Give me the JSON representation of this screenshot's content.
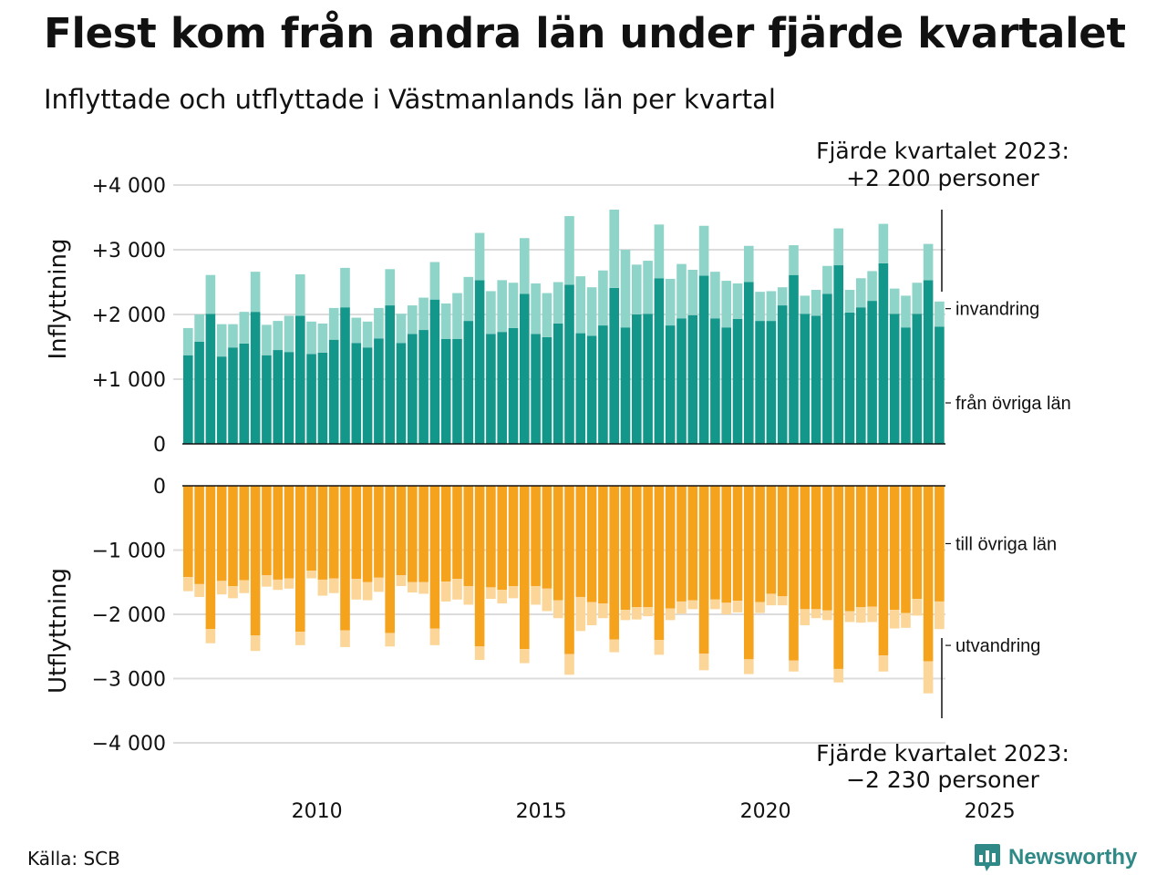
{
  "title": "Flest kom från andra län under fjärde kvartalet",
  "subtitle": "Inflyttade och utflyttade i Västmanlands län per kvartal",
  "source": "Källa: SCB",
  "brand": "Newsworthy",
  "colors": {
    "in_domestic": "#13978a",
    "in_immigration": "#8fd4c9",
    "out_domestic": "#f5a21d",
    "out_emigration": "#fbd698",
    "brand": "#2f8a87",
    "grid": "#dcdcdc"
  },
  "chart_data": {
    "type": "bar",
    "stacked": true,
    "x_start": "2007 Q1",
    "x_end": "2023 Q4",
    "x_ticks": [
      {
        "label": "2010",
        "year": 2010
      },
      {
        "label": "2015",
        "year": 2015
      },
      {
        "label": "2020",
        "year": 2020
      },
      {
        "label": "2025",
        "year": 2025
      }
    ],
    "panels": {
      "top": {
        "ylabel": "Inflyttning",
        "ylim": [
          0,
          4000
        ],
        "yticks": [
          {
            "v": 0,
            "label": "0"
          },
          {
            "v": 1000,
            "label": "+1 000"
          },
          {
            "v": 2000,
            "label": "+2 000"
          },
          {
            "v": 3000,
            "label": "+3 000"
          },
          {
            "v": 4000,
            "label": "+4 000"
          }
        ]
      },
      "bottom": {
        "ylabel": "Utflyttning",
        "ylim": [
          -4000,
          0
        ],
        "yticks": [
          {
            "v": 0,
            "label": "0"
          },
          {
            "v": -1000,
            "label": "−1 000"
          },
          {
            "v": -2000,
            "label": "−2 000"
          },
          {
            "v": -3000,
            "label": "−3 000"
          },
          {
            "v": -4000,
            "label": "−4 000"
          }
        ]
      }
    },
    "series": [
      {
        "name": "från övriga län",
        "panel": "top",
        "values": [
          1370,
          1580,
          2010,
          1350,
          1490,
          1550,
          2040,
          1370,
          1450,
          1420,
          1980,
          1390,
          1410,
          1610,
          2110,
          1560,
          1490,
          1630,
          2140,
          1560,
          1700,
          1760,
          2230,
          1620,
          1620,
          1900,
          2530,
          1700,
          1730,
          1790,
          2320,
          1700,
          1650,
          1860,
          2460,
          1710,
          1670,
          1830,
          2410,
          1800,
          2000,
          2010,
          2560,
          1830,
          1940,
          1990,
          2600,
          1940,
          1800,
          1930,
          2500,
          1900,
          1900,
          2140,
          2610,
          2010,
          1980,
          2320,
          2760,
          2030,
          2110,
          2210,
          2790,
          2010,
          1800,
          2010,
          2530,
          1810
        ]
      },
      {
        "name": "invandring",
        "panel": "top",
        "values": [
          420,
          420,
          600,
          500,
          360,
          490,
          620,
          470,
          450,
          560,
          640,
          500,
          450,
          490,
          610,
          390,
          400,
          470,
          560,
          450,
          440,
          500,
          580,
          550,
          710,
          680,
          730,
          660,
          800,
          700,
          860,
          780,
          680,
          640,
          1060,
          880,
          750,
          850,
          1210,
          1200,
          770,
          820,
          830,
          720,
          840,
          700,
          770,
          720,
          720,
          550,
          560,
          450,
          460,
          280,
          460,
          280,
          400,
          430,
          570,
          350,
          450,
          460,
          610,
          390,
          490,
          480,
          560,
          390
        ]
      },
      {
        "name": "till övriga län",
        "panel": "bottom",
        "values": [
          1420,
          1530,
          2230,
          1480,
          1560,
          1470,
          2330,
          1390,
          1460,
          1440,
          2270,
          1320,
          1460,
          1440,
          2250,
          1450,
          1500,
          1430,
          2290,
          1390,
          1500,
          1500,
          2220,
          1490,
          1450,
          1560,
          2500,
          1580,
          1620,
          1560,
          2540,
          1560,
          1600,
          1780,
          2620,
          1730,
          1810,
          1830,
          2390,
          1930,
          1890,
          1890,
          2400,
          1910,
          1800,
          1780,
          2610,
          1770,
          1820,
          1790,
          2700,
          1810,
          1680,
          1720,
          2720,
          1920,
          1920,
          1940,
          2850,
          1950,
          1890,
          1880,
          2640,
          1930,
          1980,
          1760,
          2730,
          1800
        ]
      },
      {
        "name": "utvandring",
        "panel": "bottom",
        "values": [
          220,
          200,
          220,
          210,
          190,
          200,
          240,
          180,
          160,
          160,
          210,
          120,
          250,
          230,
          260,
          320,
          280,
          220,
          210,
          170,
          160,
          180,
          260,
          310,
          320,
          290,
          210,
          180,
          210,
          190,
          220,
          290,
          350,
          280,
          320,
          530,
          360,
          230,
          200,
          160,
          190,
          140,
          230,
          180,
          190,
          140,
          260,
          150,
          180,
          180,
          230,
          170,
          180,
          140,
          170,
          250,
          140,
          150,
          210,
          170,
          240,
          240,
          250,
          290,
          230,
          260,
          500,
          430
        ]
      }
    ],
    "annotations": {
      "top_note": [
        "Fjärde kvartalet 2023:",
        "+2 200 personer"
      ],
      "bottom_note": [
        "Fjärde kvartalet 2023:",
        "−2 230 personer"
      ]
    }
  }
}
